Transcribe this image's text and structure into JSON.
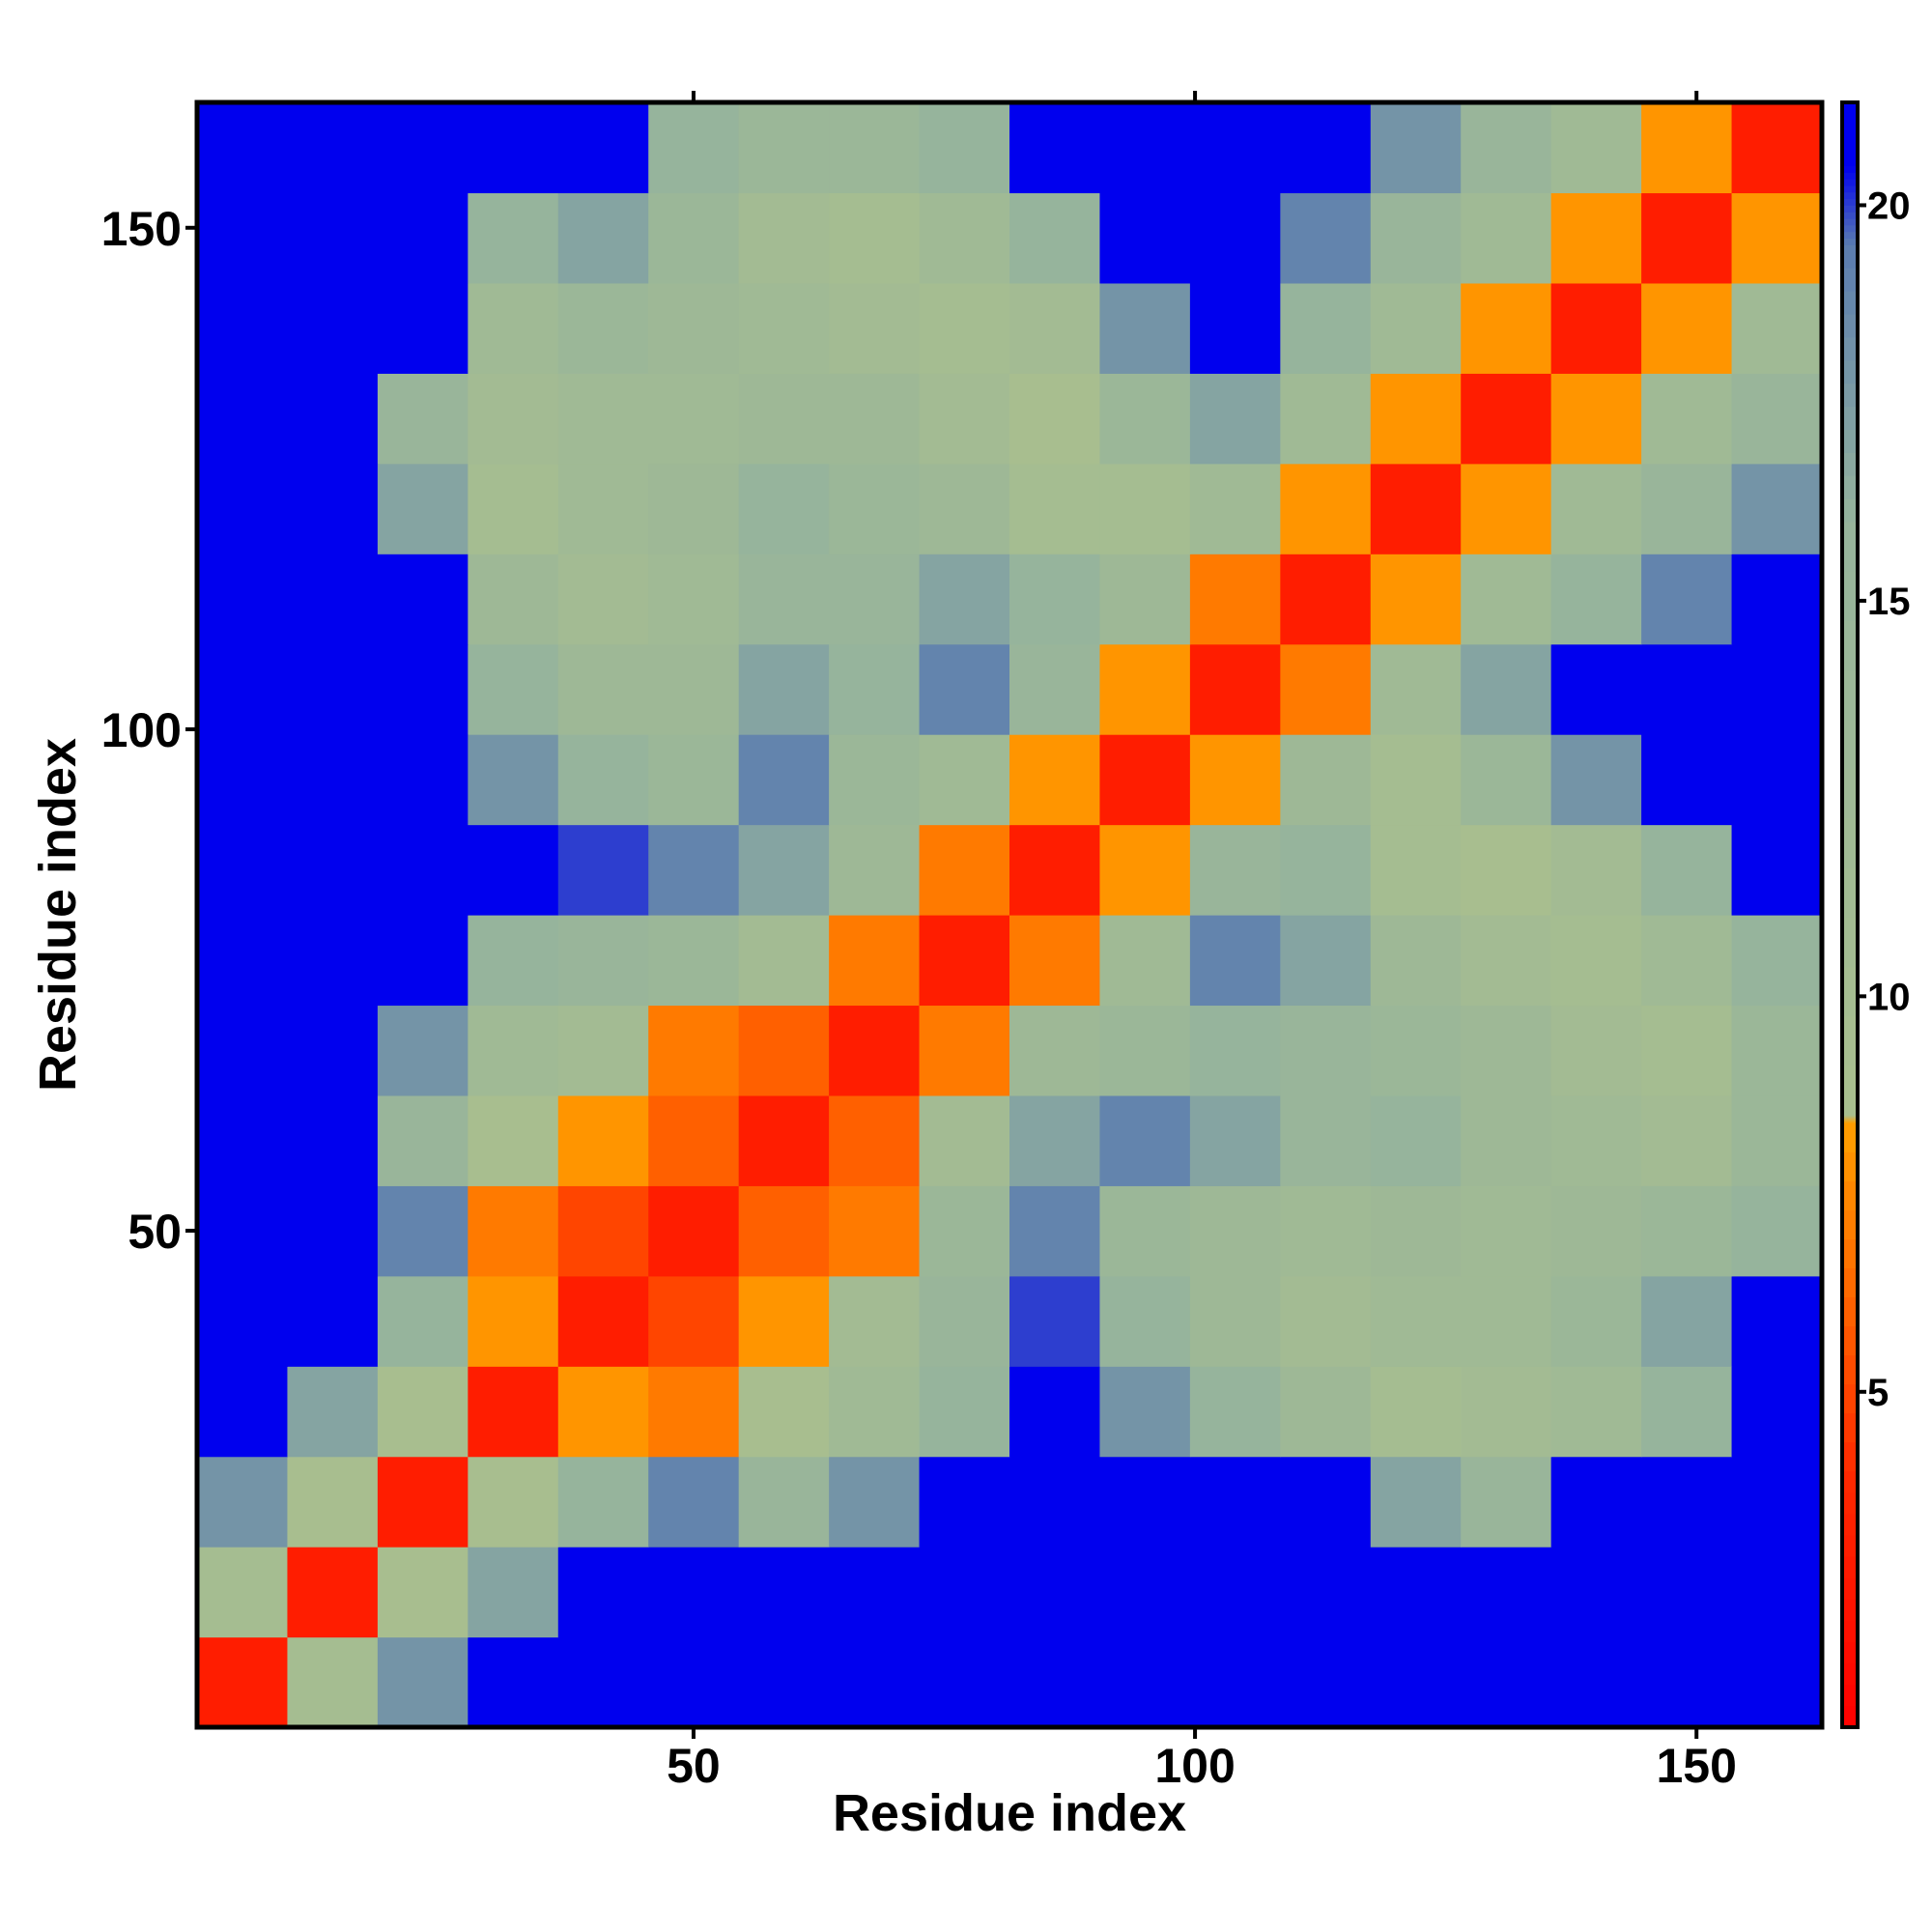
{
  "chart_data": {
    "type": "heatmap",
    "xlabel": "Residue index",
    "ylabel": "Residue index",
    "x": [
      5,
      14,
      23,
      32,
      41,
      50,
      59,
      68,
      77,
      86,
      95,
      104,
      113,
      122,
      131,
      140,
      149,
      158
    ],
    "y": [
      5,
      14,
      23,
      32,
      41,
      50,
      59,
      68,
      77,
      86,
      95,
      104,
      113,
      122,
      131,
      140,
      149,
      158
    ],
    "z": [
      [
        3,
        10,
        18,
        21,
        21,
        21,
        21,
        21,
        21,
        21,
        21,
        21,
        21,
        21,
        21,
        21,
        21,
        21
      ],
      [
        10,
        3,
        9,
        17,
        21,
        21,
        21,
        21,
        21,
        21,
        21,
        21,
        21,
        21,
        21,
        21,
        21,
        21
      ],
      [
        18,
        9,
        3,
        9,
        16,
        19,
        15,
        18,
        21,
        21,
        21,
        21,
        21,
        17,
        15,
        21,
        21,
        21
      ],
      [
        21,
        17,
        9,
        3,
        8,
        7,
        9,
        12,
        16,
        21,
        18,
        16,
        13,
        10,
        11,
        12,
        16,
        21
      ],
      [
        21,
        21,
        16,
        8,
        3,
        5,
        8,
        11,
        15,
        20,
        16,
        13,
        11,
        12,
        12,
        14,
        17,
        21
      ],
      [
        21,
        21,
        19,
        7,
        5,
        3,
        6,
        7,
        14,
        19,
        14,
        13,
        12,
        13,
        12,
        13,
        14,
        16
      ],
      [
        21,
        21,
        15,
        9,
        8,
        6,
        3,
        6,
        11,
        17,
        19,
        17,
        15,
        16,
        13,
        12,
        11,
        14
      ],
      [
        21,
        21,
        18,
        12,
        11,
        7,
        6,
        3,
        7,
        13,
        14,
        16,
        15,
        14,
        13,
        11,
        10,
        14
      ],
      [
        21,
        21,
        21,
        16,
        15,
        14,
        11,
        7,
        3,
        7,
        12,
        19,
        17,
        13,
        11,
        10,
        12,
        16
      ],
      [
        21,
        21,
        21,
        21,
        20,
        19,
        17,
        13,
        7,
        3,
        8,
        15,
        16,
        10,
        9,
        11,
        16,
        21
      ],
      [
        21,
        21,
        21,
        18,
        16,
        14,
        19,
        14,
        12,
        8,
        3,
        8,
        13,
        10,
        14,
        18,
        21,
        21
      ],
      [
        21,
        21,
        21,
        16,
        13,
        13,
        17,
        16,
        19,
        15,
        8,
        3,
        7,
        12,
        17,
        21,
        21,
        21
      ],
      [
        21,
        21,
        21,
        13,
        11,
        12,
        15,
        15,
        17,
        16,
        13,
        7,
        3,
        8,
        12,
        16,
        19,
        21
      ],
      [
        21,
        21,
        17,
        10,
        12,
        13,
        16,
        14,
        13,
        10,
        10,
        12,
        8,
        3,
        8,
        12,
        15,
        18
      ],
      [
        21,
        21,
        15,
        11,
        12,
        12,
        13,
        13,
        11,
        9,
        14,
        17,
        12,
        8,
        3,
        8,
        12,
        15
      ],
      [
        21,
        21,
        21,
        12,
        14,
        13,
        12,
        11,
        10,
        11,
        18,
        21,
        16,
        12,
        8,
        3,
        8,
        12
      ],
      [
        21,
        21,
        21,
        16,
        17,
        14,
        11,
        10,
        12,
        16,
        21,
        21,
        19,
        15,
        12,
        8,
        3,
        8
      ],
      [
        21,
        21,
        21,
        21,
        21,
        16,
        14,
        14,
        16,
        21,
        21,
        21,
        21,
        18,
        15,
        12,
        8,
        3
      ]
    ],
    "xlim": [
      0.5,
      162.5
    ],
    "ylim": [
      0.5,
      162.5
    ],
    "xticks": [
      50,
      100,
      150
    ],
    "yticks": [
      50,
      100,
      150
    ],
    "zlim": [
      0.76,
      21.3
    ],
    "zticks": [
      5,
      10,
      15,
      20
    ],
    "colorscale": [
      {
        "value": 0.76,
        "color": "#ff0000"
      },
      {
        "value": 4,
        "color": "#ff2a00"
      },
      {
        "value": 8.4,
        "color": "#ffa000"
      },
      {
        "value": 8.5,
        "color": "#a9bf8e"
      },
      {
        "value": 16,
        "color": "#96b49c"
      },
      {
        "value": 19.5,
        "color": "#5a7cb0"
      },
      {
        "value": 20.5,
        "color": "#0000ee"
      },
      {
        "value": 21.3,
        "color": "#0000ee"
      }
    ]
  }
}
